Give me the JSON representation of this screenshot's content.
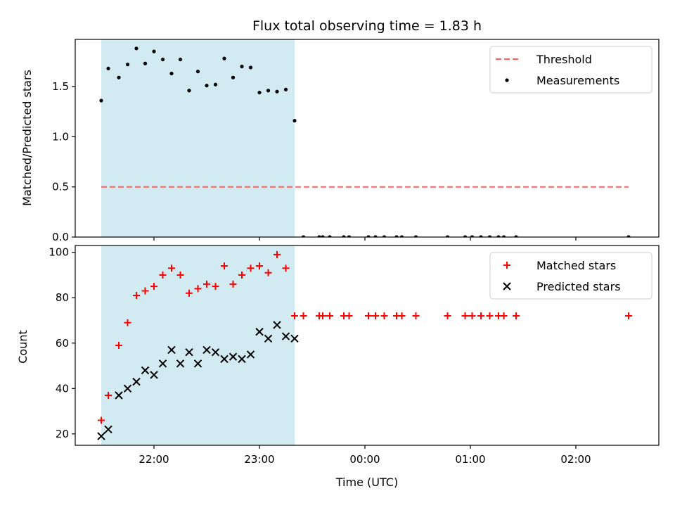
{
  "title": "Flux total observing time = 1.83 h",
  "colors": {
    "highlight": "#add8e6",
    "threshold": "#ff6666",
    "measurement": "#000000",
    "matched": "#ff0000",
    "predicted": "#000000"
  },
  "chart_data": [
    {
      "type": "scatter",
      "ylabel": "Matched/Predicted stars",
      "xlabel": "",
      "ylim": [
        0,
        1.97
      ],
      "yticks": [
        "0.0",
        "0.5",
        "1.0",
        "1.5"
      ],
      "legend_position": "top-right",
      "highlight_span": [
        "21:30",
        "23:20"
      ],
      "threshold": {
        "name": "Threshold",
        "value": 0.5,
        "x_range": [
          "21:30",
          "02:30"
        ]
      },
      "series": [
        {
          "name": "Measurements",
          "points": [
            [
              "21:30",
              1.36
            ],
            [
              "21:34",
              1.68
            ],
            [
              "21:40",
              1.59
            ],
            [
              "21:45",
              1.72
            ],
            [
              "21:50",
              1.88
            ],
            [
              "21:55",
              1.73
            ],
            [
              "22:00",
              1.85
            ],
            [
              "22:05",
              1.77
            ],
            [
              "22:10",
              1.63
            ],
            [
              "22:15",
              1.77
            ],
            [
              "22:20",
              1.46
            ],
            [
              "22:25",
              1.65
            ],
            [
              "22:30",
              1.51
            ],
            [
              "22:35",
              1.52
            ],
            [
              "22:40",
              1.78
            ],
            [
              "22:45",
              1.59
            ],
            [
              "22:50",
              1.7
            ],
            [
              "22:55",
              1.69
            ],
            [
              "23:00",
              1.44
            ],
            [
              "23:05",
              1.46
            ],
            [
              "23:10",
              1.45
            ],
            [
              "23:15",
              1.47
            ],
            [
              "23:20",
              1.16
            ],
            [
              "23:25",
              0
            ],
            [
              "23:34",
              0
            ],
            [
              "23:36",
              0
            ],
            [
              "23:40",
              0
            ],
            [
              "23:48",
              0
            ],
            [
              "23:51",
              0
            ],
            [
              "00:02",
              0
            ],
            [
              "00:06",
              0
            ],
            [
              "00:11",
              0
            ],
            [
              "00:18",
              0
            ],
            [
              "00:21",
              0
            ],
            [
              "00:29",
              0
            ],
            [
              "00:47",
              0
            ],
            [
              "00:57",
              0
            ],
            [
              "01:01",
              0
            ],
            [
              "01:06",
              0
            ],
            [
              "01:11",
              0
            ],
            [
              "01:16",
              0
            ],
            [
              "01:19",
              0
            ],
            [
              "01:26",
              0
            ],
            [
              "02:30",
              0
            ]
          ]
        }
      ]
    },
    {
      "type": "scatter",
      "ylabel": "Count",
      "xlabel": "Time (UTC)",
      "ylim": [
        15,
        103
      ],
      "yticks": [
        "20",
        "40",
        "60",
        "80",
        "100"
      ],
      "xticks": [
        "22:00",
        "23:00",
        "00:00",
        "01:00",
        "02:00"
      ],
      "legend_position": "top-right",
      "highlight_span": [
        "21:30",
        "23:20"
      ],
      "series": [
        {
          "name": "Matched stars",
          "points": [
            [
              "21:30",
              26
            ],
            [
              "21:34",
              37
            ],
            [
              "21:40",
              59
            ],
            [
              "21:45",
              69
            ],
            [
              "21:50",
              81
            ],
            [
              "21:55",
              83
            ],
            [
              "22:00",
              85
            ],
            [
              "22:05",
              90
            ],
            [
              "22:10",
              93
            ],
            [
              "22:15",
              90
            ],
            [
              "22:20",
              82
            ],
            [
              "22:25",
              84
            ],
            [
              "22:30",
              86
            ],
            [
              "22:35",
              85
            ],
            [
              "22:40",
              94
            ],
            [
              "22:45",
              86
            ],
            [
              "22:50",
              90
            ],
            [
              "22:55",
              93
            ],
            [
              "23:00",
              94
            ],
            [
              "23:05",
              91
            ],
            [
              "23:10",
              99
            ],
            [
              "23:15",
              93
            ],
            [
              "23:20",
              72
            ],
            [
              "23:25",
              72
            ],
            [
              "23:34",
              72
            ],
            [
              "23:36",
              72
            ],
            [
              "23:40",
              72
            ],
            [
              "23:48",
              72
            ],
            [
              "23:51",
              72
            ],
            [
              "00:02",
              72
            ],
            [
              "00:06",
              72
            ],
            [
              "00:11",
              72
            ],
            [
              "00:18",
              72
            ],
            [
              "00:21",
              72
            ],
            [
              "00:29",
              72
            ],
            [
              "00:47",
              72
            ],
            [
              "00:57",
              72
            ],
            [
              "01:01",
              72
            ],
            [
              "01:06",
              72
            ],
            [
              "01:11",
              72
            ],
            [
              "01:16",
              72
            ],
            [
              "01:19",
              72
            ],
            [
              "01:26",
              72
            ],
            [
              "02:30",
              72
            ]
          ]
        },
        {
          "name": "Predicted stars",
          "points": [
            [
              "21:30",
              19
            ],
            [
              "21:34",
              22
            ],
            [
              "21:40",
              37
            ],
            [
              "21:45",
              40
            ],
            [
              "21:50",
              43
            ],
            [
              "21:55",
              48
            ],
            [
              "22:00",
              46
            ],
            [
              "22:05",
              51
            ],
            [
              "22:10",
              57
            ],
            [
              "22:15",
              51
            ],
            [
              "22:20",
              56
            ],
            [
              "22:25",
              51
            ],
            [
              "22:30",
              57
            ],
            [
              "22:35",
              56
            ],
            [
              "22:40",
              53
            ],
            [
              "22:45",
              54
            ],
            [
              "22:50",
              53
            ],
            [
              "22:55",
              55
            ],
            [
              "23:00",
              65
            ],
            [
              "23:05",
              62
            ],
            [
              "23:10",
              68
            ],
            [
              "23:15",
              63
            ],
            [
              "23:20",
              62
            ]
          ]
        }
      ]
    }
  ]
}
